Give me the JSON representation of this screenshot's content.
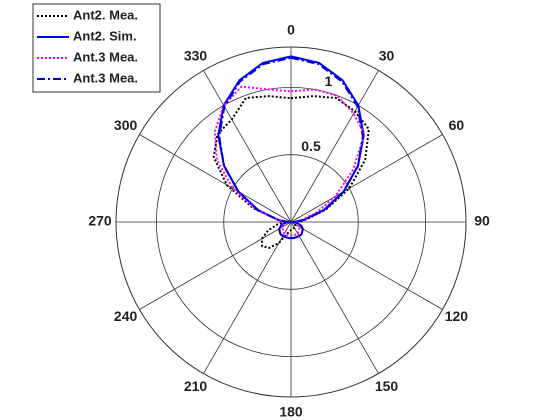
{
  "chart_data": {
    "type": "polar",
    "theta": [
      0,
      10,
      20,
      30,
      40,
      50,
      60,
      70,
      80,
      90,
      100,
      110,
      120,
      130,
      140,
      150,
      160,
      170,
      180,
      190,
      200,
      210,
      220,
      230,
      240,
      250,
      260,
      270,
      280,
      290,
      300,
      310,
      320,
      330,
      340,
      350
    ],
    "thetaticks": [
      0,
      30,
      60,
      90,
      120,
      150,
      180,
      210,
      240,
      270,
      300,
      330
    ],
    "rlim": [
      0,
      1.3
    ],
    "rticks": [
      0.5,
      1
    ],
    "grid": true,
    "legend": "upper-left",
    "series": [
      {
        "name": "Ant2. Mea.",
        "color": "#000000",
        "linestyle": "dotted",
        "values": [
          0.92,
          0.95,
          0.98,
          0.95,
          0.9,
          0.72,
          0.5,
          0.28,
          0.12,
          0.05,
          0.04,
          0.04,
          0.04,
          0.04,
          0.05,
          0.05,
          0.05,
          0.05,
          0.06,
          0.07,
          0.1,
          0.18,
          0.25,
          0.28,
          0.25,
          0.18,
          0.1,
          0.05,
          0.1,
          0.3,
          0.55,
          0.75,
          0.85,
          0.88,
          0.98,
          0.95
        ]
      },
      {
        "name": "Ant2. Sim.",
        "color": "#0000ff",
        "linestyle": "solid",
        "values": [
          1.23,
          1.2,
          1.12,
          1.0,
          0.84,
          0.65,
          0.45,
          0.26,
          0.1,
          0.02,
          0.05,
          0.08,
          0.1,
          0.11,
          0.12,
          0.12,
          0.12,
          0.12,
          0.12,
          0.12,
          0.12,
          0.12,
          0.12,
          0.11,
          0.1,
          0.08,
          0.05,
          0.02,
          0.1,
          0.26,
          0.45,
          0.65,
          0.84,
          1.0,
          1.12,
          1.2
        ]
      },
      {
        "name": "Ant.3 Mea.",
        "color": "#ff00ff",
        "linestyle": "dotted",
        "values": [
          0.97,
          1.0,
          1.0,
          0.93,
          0.85,
          0.6,
          0.38,
          0.2,
          0.08,
          0.05,
          0.05,
          0.06,
          0.07,
          0.08,
          0.09,
          0.1,
          0.1,
          0.1,
          0.1,
          0.1,
          0.1,
          0.1,
          0.09,
          0.08,
          0.07,
          0.06,
          0.05,
          0.05,
          0.1,
          0.28,
          0.5,
          0.72,
          0.88,
          1.0,
          1.07,
          1.0
        ]
      },
      {
        "name": "Ant.3 Mea.",
        "color": "#0000cc",
        "linestyle": "dashdot",
        "values": [
          1.22,
          1.19,
          1.11,
          0.99,
          0.83,
          0.65,
          0.45,
          0.27,
          0.1,
          0.03,
          0.05,
          0.08,
          0.1,
          0.11,
          0.12,
          0.12,
          0.12,
          0.12,
          0.12,
          0.12,
          0.12,
          0.12,
          0.12,
          0.11,
          0.1,
          0.08,
          0.05,
          0.03,
          0.1,
          0.27,
          0.45,
          0.65,
          0.83,
          0.99,
          1.11,
          1.19
        ]
      }
    ]
  }
}
